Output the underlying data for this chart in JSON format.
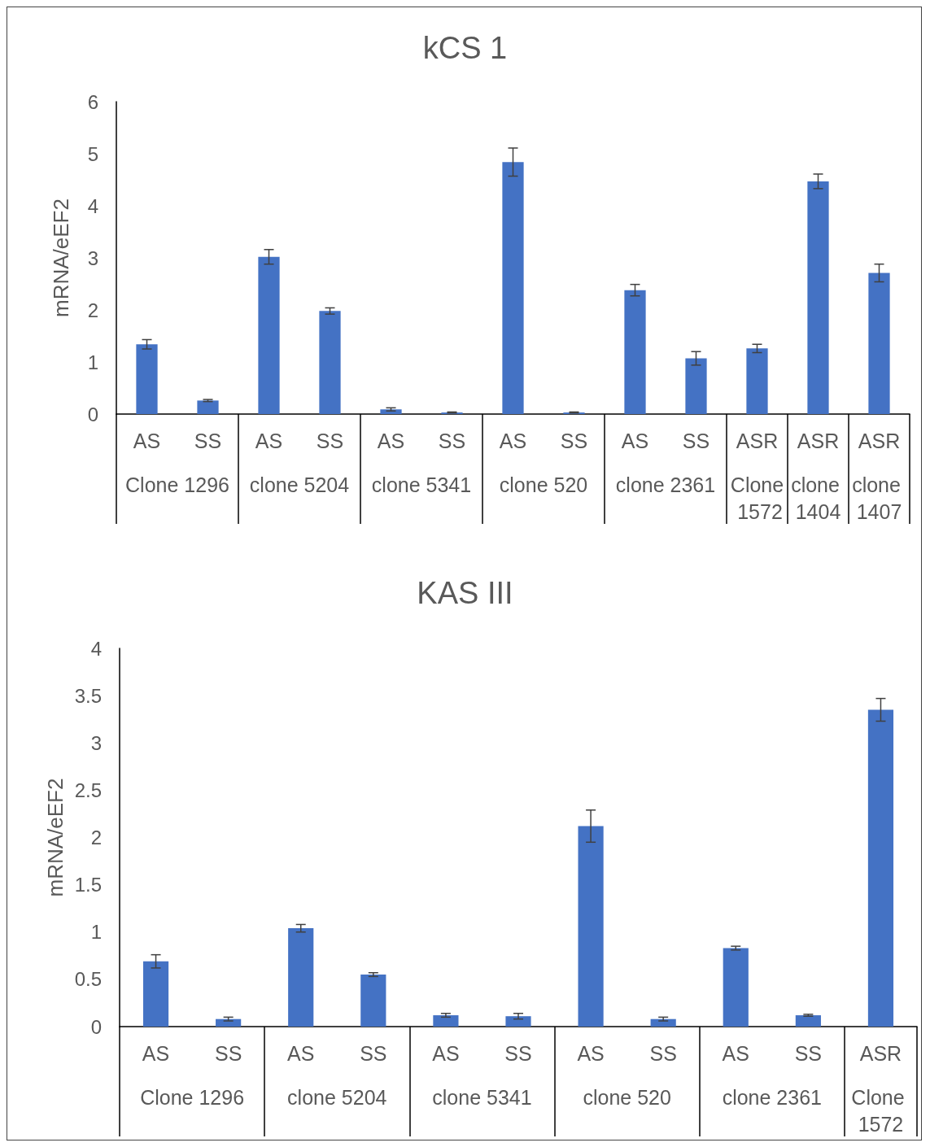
{
  "chart_data": [
    {
      "type": "bar",
      "title": "kCS 1",
      "ylabel": "mRNA/eEF2",
      "categories": [
        "AS",
        "SS",
        "AS",
        "SS",
        "AS",
        "SS",
        "AS",
        "SS",
        "AS",
        "SS",
        "ASR",
        "ASR",
        "ASR"
      ],
      "annotations": [
        "Clone 1296",
        "clone 5204",
        "clone 5341",
        "clone 520",
        "clone 2361",
        "Clone 1572",
        "clone 1404",
        "clone 1407"
      ],
      "series": [
        {
          "color": "#4472c4",
          "values": [
            1.34,
            0.26,
            3.02,
            1.98,
            0.09,
            0.03,
            4.84,
            0.03,
            2.38,
            1.07,
            1.26,
            4.47,
            2.71
          ],
          "errors": [
            0.09,
            0.02,
            0.14,
            0.06,
            0.03,
            0.01,
            0.27,
            0.01,
            0.11,
            0.13,
            0.08,
            0.14,
            0.17
          ]
        }
      ],
      "ylim": [
        0,
        6
      ],
      "yticks": [
        0,
        1,
        2,
        3,
        4,
        5,
        6
      ],
      "grid": false
    },
    {
      "type": "bar",
      "title": "KAS III",
      "ylabel": "mRNA/eEF2",
      "categories": [
        "AS",
        "SS",
        "AS",
        "SS",
        "AS",
        "SS",
        "AS",
        "SS",
        "AS",
        "SS",
        "ASR"
      ],
      "annotations": [
        "Clone 1296",
        "clone 5204",
        "clone 5341",
        "clone 520",
        "clone 2361",
        "Clone 1572"
      ],
      "series": [
        {
          "color": "#4472c4",
          "values": [
            0.69,
            0.08,
            1.04,
            0.55,
            0.12,
            0.11,
            2.12,
            0.08,
            0.83,
            0.12,
            3.35
          ],
          "errors": [
            0.07,
            0.02,
            0.04,
            0.02,
            0.02,
            0.03,
            0.17,
            0.02,
            0.02,
            0.01,
            0.12
          ]
        }
      ],
      "ylim": [
        0,
        4
      ],
      "yticks": [
        0,
        0.5,
        1,
        1.5,
        2,
        2.5,
        3,
        3.5,
        4
      ],
      "grid": false
    }
  ]
}
